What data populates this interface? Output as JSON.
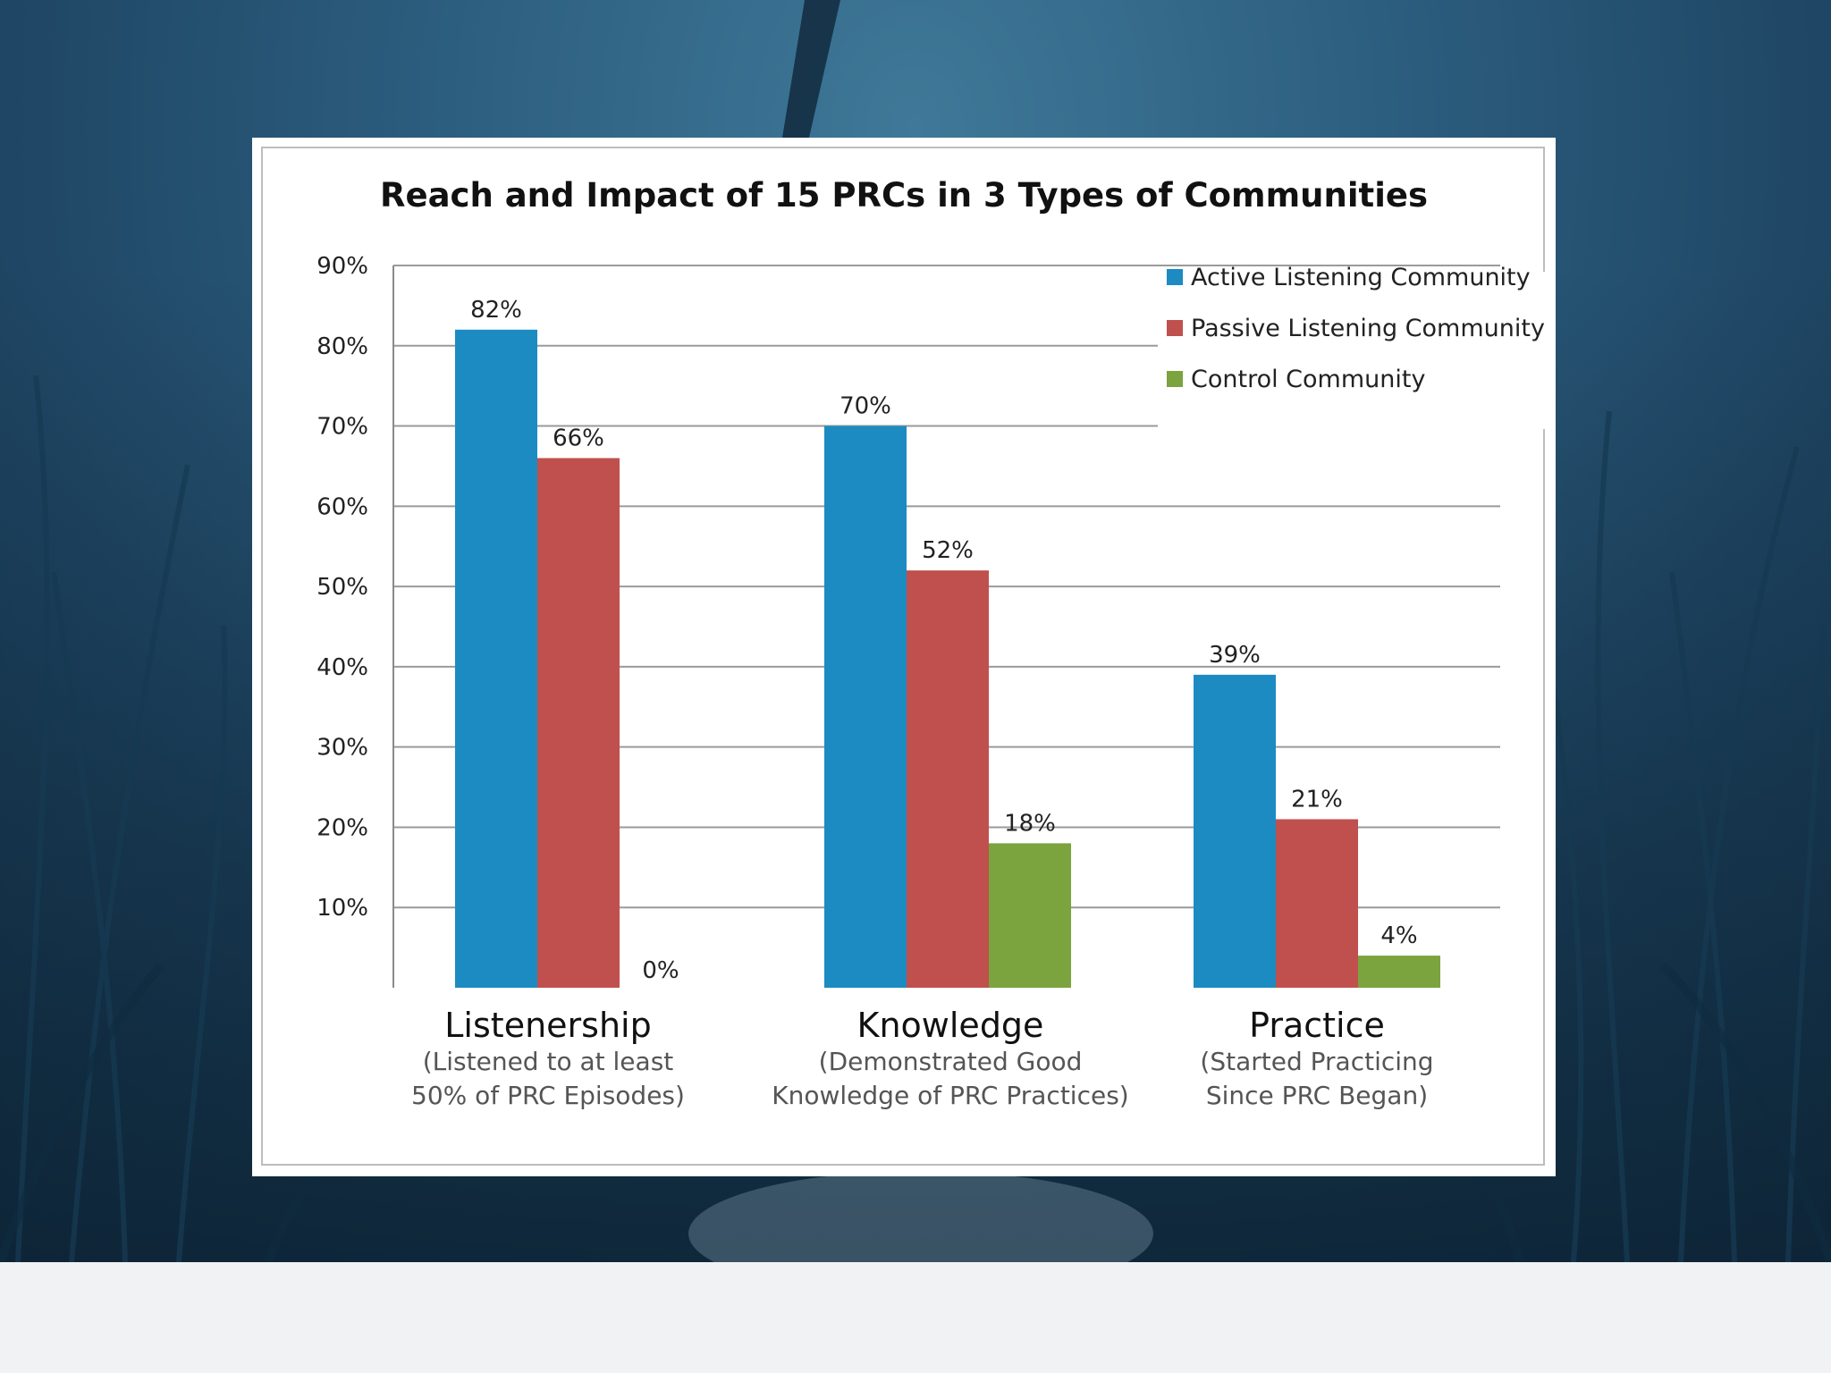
{
  "background": {
    "photo_tint": "#2d5f80",
    "footer_color": "#f1f2f4"
  },
  "colors": {
    "active": "#1b8bc2",
    "passive": "#c0504d",
    "control": "#7ba33e",
    "gridline": "#9a9a9a",
    "axis": "#8a8a8a"
  },
  "chart_data": {
    "type": "bar",
    "title": "Reach and Impact of 15 PRCs in 3 Types of Communities",
    "categories": [
      "Listenership",
      "Knowledge",
      "Practice"
    ],
    "category_subtitles": [
      [
        "(Listened to at least",
        "50% of PRC Episodes)"
      ],
      [
        "(Demonstrated Good",
        "Knowledge of PRC Practices)"
      ],
      [
        "(Started Practicing",
        "Since PRC Began)"
      ]
    ],
    "series": [
      {
        "name": "Active Listening Community",
        "values": [
          82,
          70,
          39
        ],
        "labels": [
          "82%",
          "70%",
          "39%"
        ],
        "color": "#1b8bc2"
      },
      {
        "name": "Passive Listening Community",
        "values": [
          66,
          52,
          21
        ],
        "labels": [
          "66%",
          "52%",
          "21%"
        ],
        "color": "#c0504d"
      },
      {
        "name": "Control Community",
        "values": [
          0,
          18,
          4
        ],
        "labels": [
          "0%",
          "18%",
          "4%"
        ],
        "color": "#7ba33e"
      }
    ],
    "y_ticks": [
      "10%",
      "20%",
      "30%",
      "40%",
      "50%",
      "60%",
      "70%",
      "80%",
      "90%"
    ],
    "ylim": [
      0,
      90
    ],
    "grid": true,
    "legend_position": "top-right",
    "xlabel": "",
    "ylabel": ""
  }
}
